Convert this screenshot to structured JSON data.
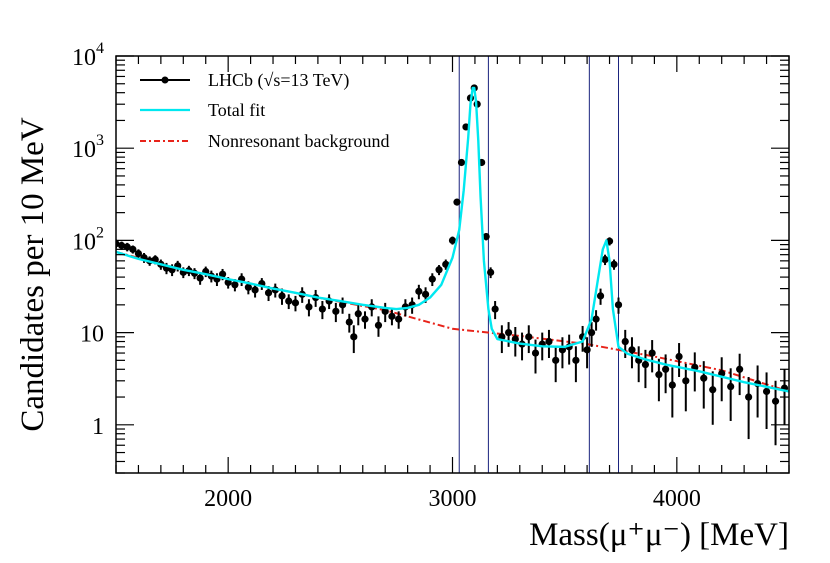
{
  "chart_data": {
    "type": "scatter",
    "title": "",
    "xlabel": "Mass(μ⁺μ⁻) [MeV]",
    "ylabel": "Candidates per 10 MeV",
    "xlim": [
      1500,
      4500
    ],
    "ylim": [
      0.3,
      10000
    ],
    "y_scale": "log",
    "x_ticks": [
      {
        "value": 2000,
        "label": "2000"
      },
      {
        "value": 3000,
        "label": "3000"
      },
      {
        "value": 4000,
        "label": "4000"
      }
    ],
    "y_ticks": [
      {
        "value": 1,
        "base": "1",
        "exp": ""
      },
      {
        "value": 10,
        "base": "10",
        "exp": ""
      },
      {
        "value": 100,
        "base": "10",
        "exp": "2"
      },
      {
        "value": 1000,
        "base": "10",
        "exp": "3"
      },
      {
        "value": 10000,
        "base": "10",
        "exp": "4"
      }
    ],
    "legend": {
      "position": "top-left",
      "entries": [
        {
          "series": "data",
          "label": "LHCb (√s=13 TeV)"
        },
        {
          "series": "total_fit",
          "label": "Total fit"
        },
        {
          "series": "background",
          "label": "Nonresonant background"
        }
      ]
    },
    "colors": {
      "data": "#000000",
      "total_fit": "#00e8f0",
      "background": "#e8231a",
      "vlines": "#1a237e"
    },
    "vertical_lines": [
      3030,
      3160,
      3610,
      3740
    ],
    "series": [
      {
        "name": "Total fit",
        "kind": "line",
        "x": [
          1500,
          1600,
          1700,
          1800,
          1900,
          2000,
          2100,
          2200,
          2300,
          2400,
          2500,
          2600,
          2700,
          2750,
          2800,
          2850,
          2900,
          2950,
          3000,
          3030,
          3050,
          3070,
          3080,
          3090,
          3097,
          3105,
          3115,
          3125,
          3140,
          3160,
          3175,
          3200,
          3300,
          3400,
          3500,
          3580,
          3620,
          3650,
          3670,
          3686,
          3700,
          3715,
          3740,
          3780,
          3850,
          3950,
          4100,
          4300,
          4500
        ],
        "y": [
          75,
          63,
          55,
          48,
          43,
          38,
          34,
          30,
          27,
          24,
          22,
          20,
          18.5,
          18,
          18.5,
          20,
          24,
          33,
          65,
          130,
          350,
          1300,
          3000,
          4500,
          4500,
          3200,
          1200,
          300,
          60,
          18,
          11,
          8.5,
          7.6,
          7.1,
          7.0,
          8.0,
          14,
          40,
          80,
          100,
          60,
          18,
          7,
          5.9,
          5.2,
          4.5,
          3.8,
          2.9,
          2.3
        ]
      },
      {
        "name": "Nonresonant background",
        "kind": "line",
        "x": [
          1500,
          1800,
          2100,
          2400,
          2700,
          3000,
          3300,
          3600,
          3900,
          4200,
          4500
        ],
        "y": [
          75,
          48,
          34,
          24,
          17.5,
          11,
          9.2,
          7.5,
          5.5,
          3.9,
          2.3
        ]
      },
      {
        "name": "LHCb data",
        "kind": "points",
        "x": [
          1500,
          1525,
          1550,
          1575,
          1600,
          1625,
          1650,
          1675,
          1700,
          1725,
          1750,
          1775,
          1800,
          1825,
          1850,
          1875,
          1900,
          1925,
          1950,
          1975,
          2000,
          2030,
          2060,
          2090,
          2120,
          2150,
          2180,
          2210,
          2240,
          2270,
          2300,
          2330,
          2360,
          2390,
          2420,
          2450,
          2480,
          2510,
          2540,
          2560,
          2580,
          2610,
          2640,
          2670,
          2700,
          2730,
          2760,
          2790,
          2820,
          2850,
          2880,
          2910,
          2940,
          2970,
          3000,
          3020,
          3040,
          3060,
          3080,
          3097,
          3110,
          3130,
          3150,
          3170,
          3190,
          3220,
          3250,
          3280,
          3310,
          3340,
          3370,
          3400,
          3430,
          3460,
          3490,
          3520,
          3550,
          3580,
          3600,
          3620,
          3640,
          3660,
          3680,
          3700,
          3720,
          3740,
          3770,
          3800,
          3830,
          3860,
          3890,
          3920,
          3950,
          3980,
          4010,
          4040,
          4080,
          4120,
          4160,
          4200,
          4240,
          4280,
          4320,
          4360,
          4400,
          4440,
          4480
        ],
        "y": [
          92,
          88,
          85,
          80,
          72,
          65,
          60,
          62,
          55,
          50,
          48,
          53,
          45,
          47,
          44,
          39,
          46,
          41,
          38,
          43,
          35,
          33,
          38,
          31,
          29,
          34,
          27,
          29,
          25,
          22,
          21,
          26,
          19,
          24,
          18,
          22,
          17,
          20,
          13,
          9,
          16,
          14,
          19,
          12,
          17,
          15,
          14,
          19,
          20,
          28,
          26,
          38,
          48,
          55,
          100,
          260,
          700,
          1700,
          3500,
          4500,
          3000,
          700,
          110,
          45,
          18,
          9,
          10,
          8.5,
          7.5,
          9,
          6,
          7.5,
          8,
          5,
          6.5,
          7,
          5,
          9,
          6.5,
          10,
          14,
          25,
          62,
          98,
          55,
          20,
          8,
          6.5,
          5,
          4.5,
          6,
          3.5,
          4,
          2.7,
          5.5,
          3,
          4.2,
          3.2,
          2.4,
          3.6,
          2.6,
          4,
          2,
          2.8,
          2.3,
          1.8,
          2.5
        ],
        "err_low": [
          10,
          9,
          9,
          8,
          8,
          8,
          7,
          7,
          7,
          7,
          7,
          7,
          6,
          6,
          6,
          6,
          6,
          6,
          6,
          6,
          5,
          5,
          6,
          5,
          5,
          5,
          5,
          5,
          5,
          4,
          4,
          5,
          4,
          5,
          4,
          4,
          4,
          4,
          3,
          3,
          4,
          3,
          4,
          3,
          4,
          3,
          3,
          4,
          4,
          5,
          5,
          6,
          6,
          7,
          10,
          16,
          26,
          41,
          59,
          67,
          55,
          26,
          10,
          6,
          4,
          3,
          3,
          3,
          2.5,
          3,
          2.4,
          2.5,
          2.7,
          2.1,
          2.4,
          2.5,
          2.1,
          2.8,
          2.4,
          3,
          3.5,
          5,
          8,
          10,
          7,
          4,
          2.7,
          2.4,
          2.1,
          2,
          2.3,
          1.7,
          1.8,
          1.5,
          2.2,
          1.6,
          1.9,
          1.7,
          1.4,
          1.8,
          1.5,
          1.9,
          1.3,
          1.6,
          1.4,
          1.2,
          1.5
        ],
        "err_high": [
          10,
          9,
          9,
          8,
          8,
          8,
          7,
          7,
          7,
          7,
          7,
          7,
          6,
          6,
          6,
          6,
          6,
          6,
          6,
          6,
          5,
          5,
          6,
          5,
          5,
          5,
          5,
          5,
          5,
          4,
          4,
          5,
          4,
          5,
          4,
          4,
          4,
          4,
          3,
          3,
          4,
          3,
          4,
          3,
          4,
          3,
          3,
          4,
          4,
          5,
          5,
          6,
          6,
          7,
          10,
          16,
          26,
          41,
          59,
          67,
          55,
          26,
          10,
          6,
          4,
          3,
          3,
          3,
          2.5,
          3,
          2.4,
          2.5,
          2.7,
          2.1,
          2.4,
          2.5,
          2.1,
          2.8,
          2.4,
          3,
          3.5,
          5,
          8,
          10,
          7,
          4,
          2.7,
          2.4,
          2.1,
          2,
          2.3,
          1.7,
          1.8,
          1.5,
          2.2,
          1.6,
          1.9,
          1.7,
          1.4,
          1.8,
          1.5,
          1.9,
          1.3,
          1.6,
          1.4,
          1.2,
          1.5
        ]
      }
    ]
  }
}
